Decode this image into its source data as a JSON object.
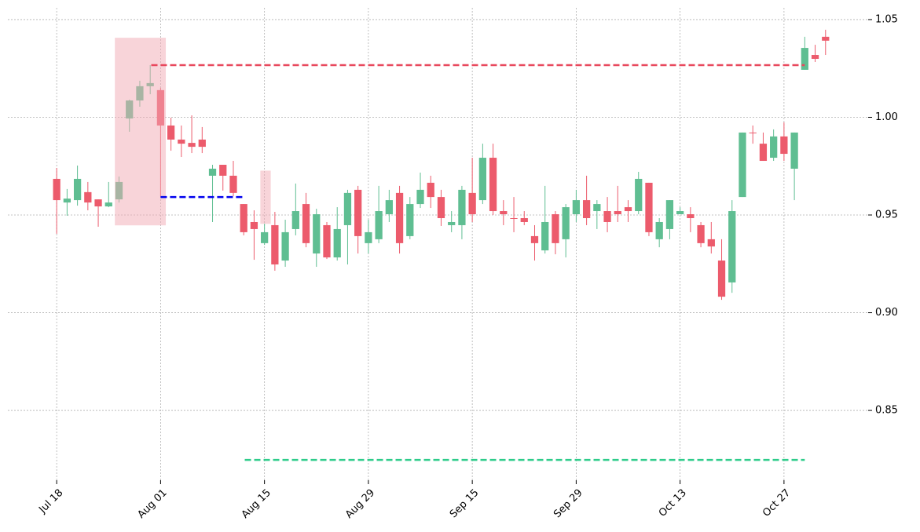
{
  "chart_data": {
    "type": "candlestick",
    "categories": [
      "Jul 18",
      null,
      null,
      null,
      null,
      null,
      null,
      null,
      null,
      null,
      "Aug 01",
      null,
      null,
      null,
      null,
      null,
      null,
      null,
      null,
      null,
      "Aug 15",
      null,
      null,
      null,
      null,
      null,
      null,
      null,
      null,
      null,
      "Aug 29",
      null,
      null,
      null,
      null,
      null,
      null,
      null,
      null,
      null,
      "Sep 15",
      null,
      null,
      null,
      null,
      null,
      null,
      null,
      null,
      null,
      "Sep 29",
      null,
      null,
      null,
      null,
      null,
      null,
      null,
      null,
      null,
      "Oct 13",
      null,
      null,
      null,
      null,
      null,
      null,
      null,
      null,
      null,
      "Oct 27",
      null,
      null,
      null,
      null
    ],
    "open": [
      0.9685,
      0.9564,
      0.9576,
      0.9617,
      0.958,
      0.9544,
      0.958,
      0.9994,
      1.0086,
      1.0159,
      1.0139,
      0.9958,
      0.9886,
      0.9869,
      0.9886,
      0.9701,
      0.9757,
      0.9701,
      0.9556,
      0.9464,
      0.9356,
      0.9448,
      0.9267,
      0.9428,
      0.9556,
      0.9303,
      0.9448,
      0.9283,
      0.9448,
      0.9629,
      0.9356,
      0.9376,
      0.9504,
      0.9613,
      0.9392,
      0.9556,
      0.9665,
      0.9592,
      0.9448,
      0.9448,
      0.9613,
      0.9576,
      0.9793,
      0.952,
      0.9484,
      0.9484,
      0.9392,
      0.9319,
      0.9504,
      0.9376,
      0.9504,
      0.9576,
      0.952,
      0.952,
      0.952,
      0.954,
      0.952,
      0.9665,
      0.9376,
      0.9428,
      0.9504,
      0.9504,
      0.9448,
      0.9376,
      0.9267,
      0.9155,
      0.9592,
      0.9922,
      0.9865,
      0.9793,
      0.9902,
      0.9737,
      1.0243,
      1.0319,
      1.0412
    ],
    "high": [
      0.9741,
      0.9633,
      0.9753,
      0.9669,
      0.958,
      0.9669,
      0.9697,
      1.009,
      1.0187,
      1.0267,
      1.0151,
      0.9998,
      0.9958,
      1.001,
      0.995,
      0.9757,
      0.9757,
      0.9777,
      0.9556,
      0.9524,
      0.9456,
      0.9516,
      0.9476,
      0.9661,
      0.9613,
      0.9532,
      0.9464,
      0.954,
      0.9629,
      0.9649,
      0.9476,
      0.9649,
      0.9629,
      0.9649,
      0.9592,
      0.9717,
      0.9701,
      0.9629,
      0.952,
      0.9649,
      0.9793,
      0.9865,
      0.9865,
      0.9576,
      0.9592,
      0.952,
      0.9448,
      0.9649,
      0.952,
      0.9556,
      0.9629,
      0.9701,
      0.9576,
      0.9592,
      0.9649,
      0.9576,
      0.9721,
      0.9665,
      0.9484,
      0.9576,
      0.954,
      0.954,
      0.9464,
      0.9464,
      0.9376,
      0.9576,
      0.9922,
      0.9958,
      0.9922,
      0.9938,
      0.9974,
      0.9922,
      1.0412,
      1.0371,
      1.0448
    ],
    "low": [
      0.9404,
      0.9496,
      0.9548,
      0.9524,
      0.944,
      0.954,
      0.9564,
      0.9926,
      1.0054,
      1.0118,
      0.9596,
      0.9829,
      0.9797,
      0.9817,
      0.9817,
      0.9464,
      0.9625,
      0.9596,
      0.9396,
      0.9271,
      0.9347,
      0.9215,
      0.9235,
      0.9396,
      0.9335,
      0.9235,
      0.9275,
      0.9267,
      0.9247,
      0.9303,
      0.9303,
      0.9356,
      0.9464,
      0.9303,
      0.9376,
      0.9536,
      0.9536,
      0.9444,
      0.9412,
      0.9376,
      0.9464,
      0.9556,
      0.95,
      0.9448,
      0.9412,
      0.9448,
      0.9267,
      0.9303,
      0.9299,
      0.9283,
      0.9464,
      0.9448,
      0.9428,
      0.9412,
      0.9464,
      0.9464,
      0.9504,
      0.9392,
      0.9335,
      0.9376,
      0.9504,
      0.9412,
      0.9335,
      0.9303,
      0.9066,
      0.9102,
      0.9592,
      0.9865,
      0.9777,
      0.9777,
      0.9777,
      0.9576,
      1.0243,
      1.0283,
      1.0319
    ],
    "close": [
      0.9576,
      0.9584,
      0.9685,
      0.9564,
      0.9544,
      0.9564,
      0.9669,
      1.0086,
      1.0159,
      1.0175,
      0.9958,
      0.9886,
      0.9865,
      0.9849,
      0.9849,
      0.9737,
      0.9701,
      0.9613,
      0.9412,
      0.9428,
      0.9412,
      0.9247,
      0.9412,
      0.952,
      0.9356,
      0.9504,
      0.9283,
      0.9428,
      0.9613,
      0.9392,
      0.9412,
      0.952,
      0.9576,
      0.9356,
      0.9556,
      0.9629,
      0.9592,
      0.9484,
      0.9464,
      0.9629,
      0.9504,
      0.9793,
      0.952,
      0.9504,
      0.948,
      0.9464,
      0.9356,
      0.9464,
      0.9356,
      0.954,
      0.9576,
      0.9484,
      0.9556,
      0.9464,
      0.9504,
      0.952,
      0.9685,
      0.9412,
      0.9464,
      0.9576,
      0.952,
      0.9484,
      0.9356,
      0.9339,
      0.9082,
      0.952,
      0.9922,
      0.9918,
      0.9777,
      0.9902,
      0.9813,
      0.9922,
      1.0355,
      1.0299,
      1.0392
    ],
    "up_color": "#5fbe92",
    "down_color": "#ec5b6c",
    "boxes": [
      {
        "x": [
          5.6,
          10.5
        ],
        "y": [
          0.9447,
          1.0407
        ],
        "color": "#f2a9b4"
      },
      {
        "x": [
          19.6,
          20.6
        ],
        "y": [
          0.9455,
          0.9727
        ],
        "color": "#f2a9b4"
      }
    ],
    "levels": [
      {
        "value": 1.0267,
        "x": [
          9.1,
          72
        ],
        "color": "#e8485d"
      },
      {
        "value": 0.9592,
        "x": [
          10,
          18.1
        ],
        "color": "#0000ee"
      },
      {
        "value": 0.8247,
        "x": [
          18.1,
          72
        ],
        "color": "#2ecc8a"
      }
    ],
    "xlim": [
      -4.7,
      78.1
    ],
    "ylim": [
      0.8143,
      1.056
    ],
    "yticks": [
      0.85,
      {
        "value": 0.9,
        "label": "0.90"
      },
      0.95,
      {
        "value": 1,
        "label": "1.00"
      },
      1.05
    ],
    "grid": true
  }
}
